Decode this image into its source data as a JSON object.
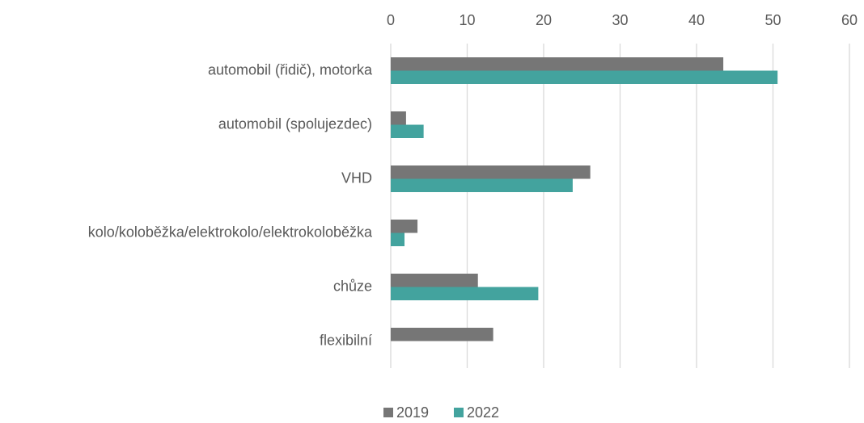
{
  "chart_data": {
    "type": "bar",
    "orientation": "horizontal",
    "categories": [
      "automobil (řidič), motorka",
      "automobil (spolujezdec)",
      "VHD",
      "kolo/koloběžka/elektrokolo/elektrokoloběžka",
      "chůze",
      "flexibilní"
    ],
    "series": [
      {
        "name": "2019",
        "color": "#767676",
        "values": [
          43.5,
          2.0,
          26.1,
          3.5,
          11.4,
          13.4
        ]
      },
      {
        "name": "2022",
        "color": "#43a39e",
        "values": [
          50.6,
          4.3,
          23.8,
          1.8,
          19.3,
          null
        ]
      }
    ],
    "xlim": [
      0,
      60
    ],
    "xticks": [
      0,
      10,
      20,
      30,
      40,
      50,
      60
    ],
    "grid": true,
    "legend": "bottom"
  }
}
